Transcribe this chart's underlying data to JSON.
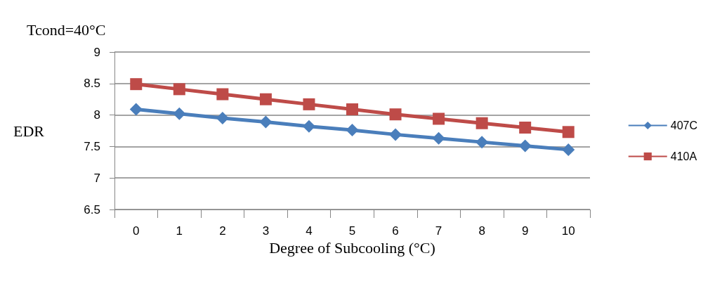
{
  "chart_data": {
    "type": "line",
    "title": "Tcond=40°C",
    "xlabel": "Degree of Subcooling (°C)",
    "ylabel": "EDR",
    "categories": [
      "0",
      "1",
      "2",
      "3",
      "4",
      "5",
      "6",
      "7",
      "8",
      "9",
      "10"
    ],
    "series": [
      {
        "name": "407C",
        "color": "#4a7ebb",
        "marker": "diamond",
        "values": [
          8.09,
          8.02,
          7.95,
          7.89,
          7.82,
          7.76,
          7.69,
          7.63,
          7.57,
          7.51,
          7.45
        ]
      },
      {
        "name": "410A",
        "color": "#be4b48",
        "marker": "square",
        "values": [
          8.49,
          8.41,
          8.33,
          8.25,
          8.17,
          8.09,
          8.01,
          7.94,
          7.87,
          7.8,
          7.73
        ]
      }
    ],
    "ylim": [
      6.5,
      9
    ],
    "yticks": [
      6.5,
      7,
      7.5,
      8,
      8.5,
      9
    ],
    "grid": "y",
    "legend": "right",
    "line_style": "solid"
  }
}
